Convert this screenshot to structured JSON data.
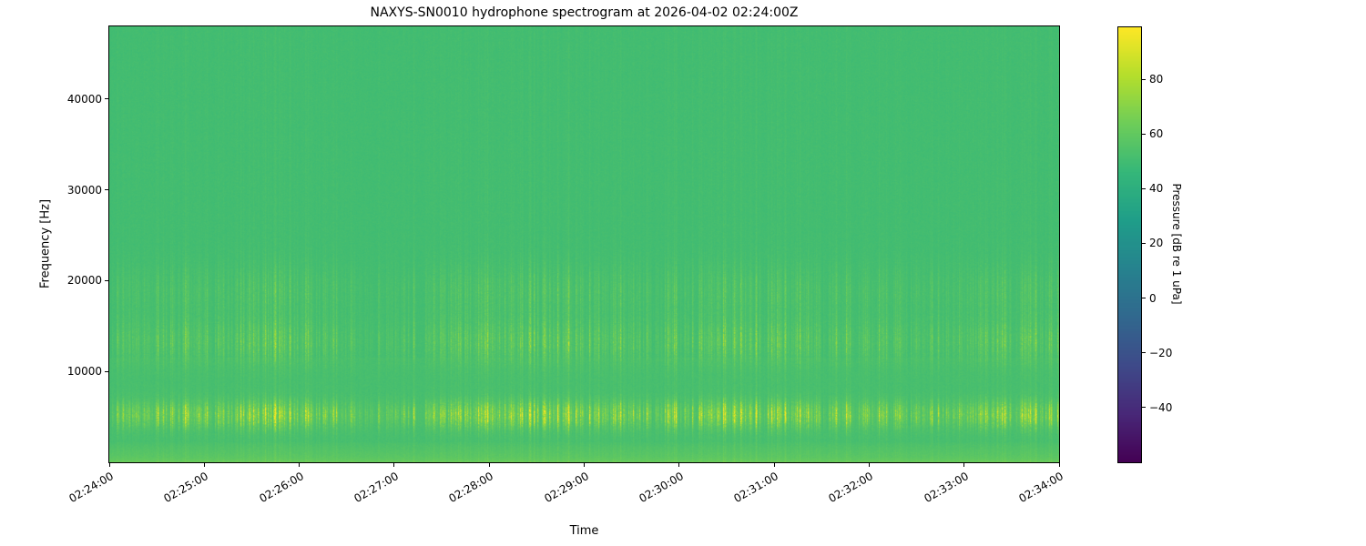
{
  "chart_data": {
    "type": "heatmap",
    "title": "NAXYS-SN0010 hydrophone spectrogram at 2026-04-02 02:24:00Z",
    "xlabel": "Time",
    "ylabel": "Frequency [Hz]",
    "x_ticks": [
      "02:24:00",
      "02:25:00",
      "02:26:00",
      "02:27:00",
      "02:28:00",
      "02:29:00",
      "02:30:00",
      "02:31:00",
      "02:32:00",
      "02:33:00",
      "02:34:00"
    ],
    "y_ticks": [
      {
        "value": 10000,
        "label": "10000"
      },
      {
        "value": 20000,
        "label": "20000"
      },
      {
        "value": 30000,
        "label": "30000"
      },
      {
        "value": 40000,
        "label": "40000"
      }
    ],
    "ylim": [
      0,
      48000
    ],
    "time_span_seconds": 600,
    "colormap": "viridis",
    "background_level_db": 50,
    "colorbar": {
      "label": "Pressure [dB re 1 uPa]",
      "vmin": -60,
      "vmax": 99,
      "ticks": [
        {
          "value": 80,
          "label": "80"
        },
        {
          "value": 60,
          "label": "60"
        },
        {
          "value": 40,
          "label": "40"
        },
        {
          "value": 20,
          "label": "20"
        },
        {
          "value": 0,
          "label": "0"
        },
        {
          "value": -20,
          "label": "−20"
        },
        {
          "value": -40,
          "label": "−40"
        }
      ]
    },
    "features": {
      "tonal_band_hz_primary": 5200,
      "tonal_band_hz_secondary": 13300,
      "tonal_band_hz_tertiary": 18800,
      "low_frequency_band_max_hz": 2200,
      "band_shade_boundary_hz": 11500,
      "broadband_click_transients": true
    }
  }
}
